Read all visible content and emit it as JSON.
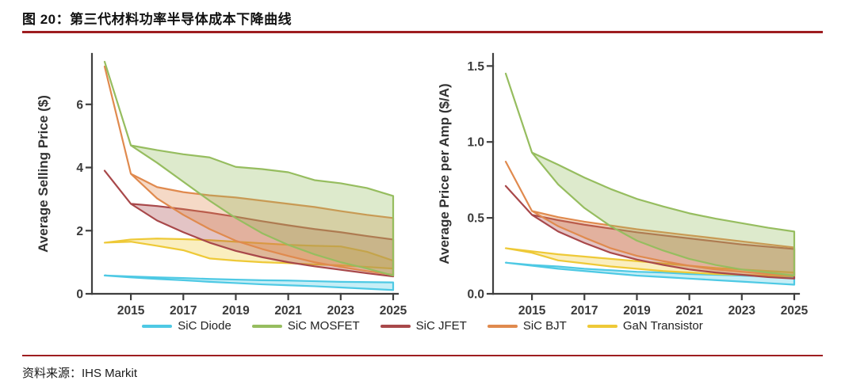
{
  "figure": {
    "title": "图 20：第三代材料功率半导体成本下降曲线",
    "source": "资料来源：IHS Markit",
    "rule_color": "#9e1d20"
  },
  "legend": [
    {
      "label": "SiC Diode",
      "color": "#4ec9e4"
    },
    {
      "label": "SiC MOSFET",
      "color": "#96bd5f"
    },
    {
      "label": "SiC JFET",
      "color": "#a8484a"
    },
    {
      "label": "SiC BJT",
      "color": "#e08a4e"
    },
    {
      "label": "GaN Transistor",
      "color": "#eec937"
    }
  ],
  "chart_data": [
    {
      "type": "area",
      "title": "",
      "xlabel": "",
      "ylabel": "Average Selling Price ($)",
      "x": [
        2014,
        2015,
        2016,
        2017,
        2018,
        2019,
        2020,
        2021,
        2022,
        2023,
        2024,
        2025
      ],
      "xticks": [
        {
          "v": 2015,
          "label": "2015"
        },
        {
          "v": 2017,
          "label": "2017"
        },
        {
          "v": 2019,
          "label": "2019"
        },
        {
          "v": 2021,
          "label": "2021"
        },
        {
          "v": 2023,
          "label": "2023"
        },
        {
          "v": 2025,
          "label": "2025"
        }
      ],
      "yticks": [
        {
          "v": 0,
          "label": "0"
        },
        {
          "v": 2,
          "label": "2"
        },
        {
          "v": 4,
          "label": "4"
        },
        {
          "v": 6,
          "label": "6"
        }
      ],
      "ylim": [
        0,
        7.6
      ],
      "grid": false,
      "series": [
        {
          "name": "SiC Diode",
          "color": "#4ec9e4",
          "upper": [
            0.58,
            0.55,
            0.52,
            0.5,
            0.47,
            0.45,
            0.43,
            0.42,
            0.4,
            0.38,
            0.37,
            0.36
          ],
          "lower": [
            0.58,
            0.52,
            0.47,
            0.43,
            0.38,
            0.34,
            0.3,
            0.27,
            0.24,
            0.2,
            0.16,
            0.12
          ]
        },
        {
          "name": "GaN Transistor",
          "color": "#eec937",
          "upper": [
            1.62,
            1.72,
            1.75,
            1.73,
            1.7,
            1.65,
            1.6,
            1.55,
            1.52,
            1.5,
            1.33,
            1.05
          ],
          "lower": [
            1.62,
            1.65,
            1.52,
            1.38,
            1.12,
            1.05,
            1.0,
            0.97,
            0.93,
            0.9,
            0.85,
            0.8
          ]
        },
        {
          "name": "SiC JFET",
          "color": "#a8484a",
          "upper": [
            3.9,
            2.85,
            2.78,
            2.68,
            2.57,
            2.44,
            2.3,
            2.17,
            2.05,
            1.95,
            1.83,
            1.72
          ],
          "lower": [
            3.9,
            2.85,
            2.32,
            1.95,
            1.62,
            1.36,
            1.16,
            1.0,
            0.87,
            0.76,
            0.65,
            0.55
          ]
        },
        {
          "name": "SiC BJT",
          "color": "#e08a4e",
          "upper": [
            7.2,
            3.8,
            3.38,
            3.22,
            3.12,
            3.05,
            2.95,
            2.85,
            2.75,
            2.62,
            2.5,
            2.4
          ],
          "lower": [
            7.2,
            3.8,
            3.02,
            2.5,
            2.05,
            1.68,
            1.42,
            1.2,
            1.0,
            0.85,
            0.72,
            0.6
          ]
        },
        {
          "name": "SiC MOSFET",
          "color": "#96bd5f",
          "upper": [
            7.35,
            4.7,
            4.55,
            4.42,
            4.32,
            4.02,
            3.95,
            3.85,
            3.6,
            3.5,
            3.35,
            3.1
          ],
          "lower": [
            7.35,
            4.7,
            4.15,
            3.55,
            2.95,
            2.4,
            1.92,
            1.55,
            1.25,
            1.0,
            0.8,
            0.58
          ]
        }
      ]
    },
    {
      "type": "area",
      "title": "",
      "xlabel": "",
      "ylabel": "Average Price per Amp ($/A)",
      "x": [
        2014,
        2015,
        2016,
        2017,
        2018,
        2019,
        2020,
        2021,
        2022,
        2023,
        2024,
        2025
      ],
      "xticks": [
        {
          "v": 2015,
          "label": "2015"
        },
        {
          "v": 2017,
          "label": "2017"
        },
        {
          "v": 2019,
          "label": "2019"
        },
        {
          "v": 2021,
          "label": "2021"
        },
        {
          "v": 2023,
          "label": "2023"
        },
        {
          "v": 2025,
          "label": "2025"
        }
      ],
      "yticks": [
        {
          "v": 0,
          "label": "0.0"
        },
        {
          "v": 0.5,
          "label": "0.5"
        },
        {
          "v": 1,
          "label": "1.0"
        },
        {
          "v": 1.5,
          "label": "1.5"
        }
      ],
      "ylim": [
        0,
        1.58
      ],
      "grid": false,
      "series": [
        {
          "name": "SiC Diode",
          "color": "#4ec9e4",
          "upper": [
            0.205,
            0.19,
            0.18,
            0.165,
            0.155,
            0.145,
            0.14,
            0.13,
            0.125,
            0.12,
            0.115,
            0.11
          ],
          "lower": [
            0.205,
            0.185,
            0.165,
            0.15,
            0.135,
            0.12,
            0.11,
            0.1,
            0.09,
            0.08,
            0.07,
            0.06
          ]
        },
        {
          "name": "GaN Transistor",
          "color": "#eec937",
          "upper": [
            0.3,
            0.28,
            0.26,
            0.245,
            0.23,
            0.215,
            0.2,
            0.185,
            0.17,
            0.16,
            0.15,
            0.14
          ],
          "lower": [
            0.3,
            0.27,
            0.22,
            0.2,
            0.18,
            0.165,
            0.15,
            0.14,
            0.13,
            0.125,
            0.12,
            0.115
          ]
        },
        {
          "name": "SiC JFET",
          "color": "#a8484a",
          "upper": [
            0.71,
            0.52,
            0.485,
            0.455,
            0.43,
            0.405,
            0.385,
            0.365,
            0.345,
            0.325,
            0.31,
            0.295
          ],
          "lower": [
            0.71,
            0.52,
            0.41,
            0.335,
            0.27,
            0.225,
            0.19,
            0.16,
            0.14,
            0.125,
            0.11,
            0.1
          ]
        },
        {
          "name": "SiC BJT",
          "color": "#e08a4e",
          "upper": [
            0.87,
            0.545,
            0.505,
            0.475,
            0.45,
            0.425,
            0.405,
            0.385,
            0.365,
            0.345,
            0.325,
            0.305
          ],
          "lower": [
            0.87,
            0.545,
            0.445,
            0.37,
            0.3,
            0.25,
            0.215,
            0.185,
            0.16,
            0.145,
            0.13,
            0.12
          ]
        },
        {
          "name": "SiC MOSFET",
          "color": "#96bd5f",
          "upper": [
            1.45,
            0.93,
            0.85,
            0.765,
            0.69,
            0.625,
            0.575,
            0.53,
            0.495,
            0.465,
            0.435,
            0.41
          ],
          "lower": [
            1.45,
            0.93,
            0.72,
            0.565,
            0.445,
            0.35,
            0.285,
            0.23,
            0.19,
            0.16,
            0.14,
            0.12
          ]
        }
      ]
    }
  ]
}
